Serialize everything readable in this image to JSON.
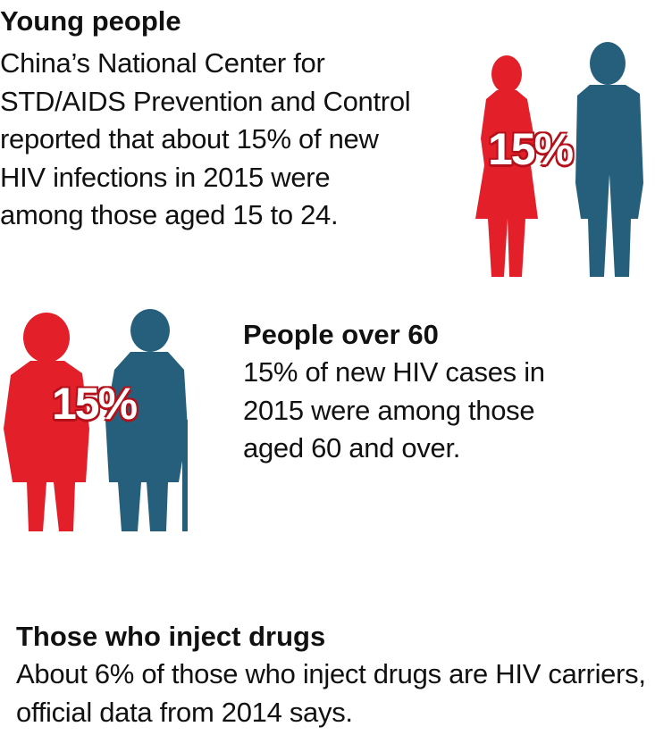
{
  "sections": [
    {
      "title": "Young people",
      "body": "China’s National Center for STD/AIDS Prevention and Control reported that about 15% of new HIV infections in 2015 were among those aged 15 to 24.",
      "stat": "15%"
    },
    {
      "title": "People over 60",
      "body": "15% of new HIV cases in 2015 were among those aged 60 and over.",
      "stat": "15%"
    },
    {
      "title": "Those who inject drugs",
      "body": "About 6% of those who inject drugs are HIV carriers, official data from 2014 says."
    }
  ]
}
